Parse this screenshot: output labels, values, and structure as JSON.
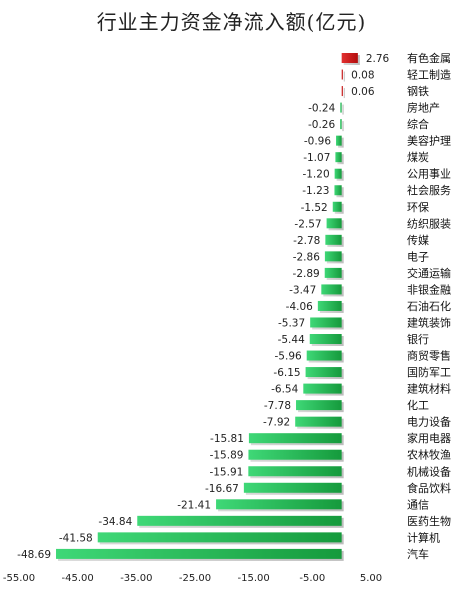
{
  "chart_data": {
    "type": "bar",
    "orientation": "horizontal",
    "title": "行业主力资金净流入额(亿元)",
    "xlabel": "",
    "ylabel": "",
    "xlim": [
      -55,
      5
    ],
    "x_ticks": [
      "-55.00",
      "-45.00",
      "-35.00",
      "-25.00",
      "-15.00",
      "-5.00",
      "5.00"
    ],
    "x_tick_values": [
      -55,
      -45,
      -35,
      -25,
      -15,
      -5,
      5
    ],
    "grid": false,
    "legend": "none",
    "colors": {
      "positive": "#cc1111",
      "negative": "#1fae4a",
      "negative_light": "#38d06c"
    },
    "categories": [
      "有色金属",
      "轻工制造",
      "钢铁",
      "房地产",
      "综合",
      "美容护理",
      "煤炭",
      "公用事业",
      "社会服务",
      "环保",
      "纺织服装",
      "传媒",
      "电子",
      "交通运输",
      "非银金融",
      "石油石化",
      "建筑装饰",
      "银行",
      "商贸零售",
      "国防军工",
      "建筑材料",
      "化工",
      "电力设备",
      "家用电器",
      "农林牧渔",
      "机械设备",
      "食品饮料",
      "通信",
      "医药生物",
      "计算机",
      "汽车"
    ],
    "values": [
      2.76,
      0.08,
      0.06,
      -0.24,
      -0.26,
      -0.96,
      -1.07,
      -1.2,
      -1.23,
      -1.52,
      -2.57,
      -2.78,
      -2.86,
      -2.89,
      -3.47,
      -4.06,
      -5.37,
      -5.44,
      -5.96,
      -6.15,
      -6.54,
      -7.78,
      -7.92,
      -15.81,
      -15.89,
      -15.91,
      -16.67,
      -21.41,
      -34.84,
      -41.58,
      -48.69
    ],
    "value_labels": [
      "2.76",
      "0.08",
      "0.06",
      "-0.24",
      "-0.26",
      "-0.96",
      "-1.07",
      "-1.20",
      "-1.23",
      "-1.52",
      "-2.57",
      "-2.78",
      "-2.86",
      "-2.89",
      "-3.47",
      "-4.06",
      "-5.37",
      "-5.44",
      "-5.96",
      "-6.15",
      "-6.54",
      "-7.78",
      "-7.92",
      "-15.81",
      "-15.89",
      "-15.91",
      "-16.67",
      "-21.41",
      "-34.84",
      "-41.58",
      "-48.69"
    ]
  }
}
